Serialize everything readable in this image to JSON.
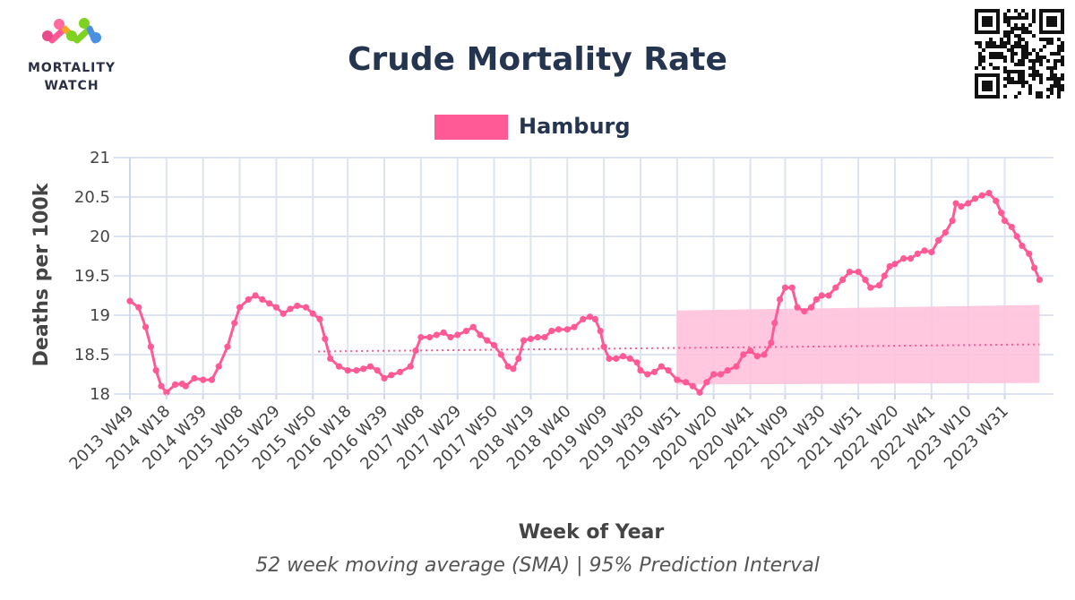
{
  "header": {
    "logo_line1": "MORTALITY",
    "logo_line2": "WATCH",
    "title": "Crude Mortality Rate",
    "subtitle": "52 week moving average (SMA) | 95% Prediction Interval"
  },
  "legend": {
    "label": "Hamburg",
    "color": "#ff5a96"
  },
  "colors": {
    "series": "#ff5a96",
    "band": "#ffc2dc",
    "baseline": "#ff5a96",
    "grid": "#dde3f3"
  },
  "chart_data": {
    "type": "line",
    "xlabel": "Week of Year",
    "ylabel": "Deaths per 100k",
    "ylim": [
      18,
      21
    ],
    "yticks": [
      18,
      18.5,
      19,
      19.5,
      20,
      20.5,
      21
    ],
    "ytick_labels": [
      "18",
      "18.5",
      "19",
      "19.5",
      "20",
      "20.5",
      "21"
    ],
    "x_start_week": "2013 W49",
    "x_end_week": "2024 W05",
    "xtick_labels": [
      "2013 W49",
      "2014 W18",
      "2014 W39",
      "2015 W08",
      "2015 W29",
      "2015 W50",
      "2016 W18",
      "2016 W39",
      "2017 W08",
      "2017 W29",
      "2017 W50",
      "2018 W19",
      "2018 W40",
      "2019 W09",
      "2019 W30",
      "2019 W51",
      "2020 W20",
      "2020 W41",
      "2021 W09",
      "2021 W30",
      "2021 W51",
      "2022 W20",
      "2022 W41",
      "2023 W10",
      "2023 W31"
    ],
    "series": [
      {
        "name": "Hamburg",
        "points": [
          [
            "2013 W49",
            19.18
          ],
          [
            "2014 W02",
            19.1
          ],
          [
            "2014 W06",
            18.85
          ],
          [
            "2014 W09",
            18.6
          ],
          [
            "2014 W12",
            18.3
          ],
          [
            "2014 W15",
            18.1
          ],
          [
            "2014 W18",
            18.02
          ],
          [
            "2014 W23",
            18.12
          ],
          [
            "2014 W27",
            18.13
          ],
          [
            "2014 W29",
            18.1
          ],
          [
            "2014 W34",
            18.2
          ],
          [
            "2014 W39",
            18.18
          ],
          [
            "2014 W44",
            18.18
          ],
          [
            "2014 W48",
            18.35
          ],
          [
            "2015 W01",
            18.6
          ],
          [
            "2015 W05",
            18.9
          ],
          [
            "2015 W08",
            19.1
          ],
          [
            "2015 W13",
            19.2
          ],
          [
            "2015 W17",
            19.25
          ],
          [
            "2015 W21",
            19.2
          ],
          [
            "2015 W25",
            19.15
          ],
          [
            "2015 W29",
            19.1
          ],
          [
            "2015 W33",
            19.02
          ],
          [
            "2015 W37",
            19.08
          ],
          [
            "2015 W41",
            19.12
          ],
          [
            "2015 W46",
            19.1
          ],
          [
            "2015 W50",
            19.02
          ],
          [
            "2016 W02",
            18.95
          ],
          [
            "2016 W05",
            18.7
          ],
          [
            "2016 W08",
            18.45
          ],
          [
            "2016 W13",
            18.35
          ],
          [
            "2016 W18",
            18.3
          ],
          [
            "2016 W23",
            18.3
          ],
          [
            "2016 W27",
            18.32
          ],
          [
            "2016 W31",
            18.35
          ],
          [
            "2016 W35",
            18.3
          ],
          [
            "2016 W39",
            18.2
          ],
          [
            "2016 W43",
            18.24
          ],
          [
            "2016 W48",
            18.28
          ],
          [
            "2017 W02",
            18.35
          ],
          [
            "2017 W05",
            18.55
          ],
          [
            "2017 W08",
            18.72
          ],
          [
            "2017 W13",
            18.72
          ],
          [
            "2017 W17",
            18.75
          ],
          [
            "2017 W21",
            18.78
          ],
          [
            "2017 W25",
            18.72
          ],
          [
            "2017 W29",
            18.75
          ],
          [
            "2017 W34",
            18.8
          ],
          [
            "2017 W38",
            18.85
          ],
          [
            "2017 W42",
            18.75
          ],
          [
            "2017 W46",
            18.68
          ],
          [
            "2017 W50",
            18.62
          ],
          [
            "2018 W02",
            18.5
          ],
          [
            "2018 W06",
            18.35
          ],
          [
            "2018 W09",
            18.32
          ],
          [
            "2018 W12",
            18.45
          ],
          [
            "2018 W15",
            18.68
          ],
          [
            "2018 W19",
            18.7
          ],
          [
            "2018 W23",
            18.72
          ],
          [
            "2018 W27",
            18.72
          ],
          [
            "2018 W31",
            18.8
          ],
          [
            "2018 W35",
            18.82
          ],
          [
            "2018 W40",
            18.82
          ],
          [
            "2018 W44",
            18.85
          ],
          [
            "2018 W49",
            18.95
          ],
          [
            "2019 W01",
            18.98
          ],
          [
            "2019 W04",
            18.95
          ],
          [
            "2019 W07",
            18.8
          ],
          [
            "2019 W09",
            18.6
          ],
          [
            "2019 W12",
            18.45
          ],
          [
            "2019 W16",
            18.45
          ],
          [
            "2019 W20",
            18.48
          ],
          [
            "2019 W24",
            18.45
          ],
          [
            "2019 W28",
            18.4
          ],
          [
            "2019 W30",
            18.3
          ],
          [
            "2019 W34",
            18.25
          ],
          [
            "2019 W38",
            18.28
          ],
          [
            "2019 W42",
            18.35
          ],
          [
            "2019 W46",
            18.3
          ],
          [
            "2019 W51",
            18.18
          ],
          [
            "2020 W04",
            18.15
          ],
          [
            "2020 W08",
            18.1
          ],
          [
            "2020 W12",
            18.02
          ],
          [
            "2020 W16",
            18.15
          ],
          [
            "2020 W20",
            18.25
          ],
          [
            "2020 W24",
            18.25
          ],
          [
            "2020 W28",
            18.3
          ],
          [
            "2020 W33",
            18.35
          ],
          [
            "2020 W37",
            18.5
          ],
          [
            "2020 W41",
            18.55
          ],
          [
            "2020 W45",
            18.48
          ],
          [
            "2020 W49",
            18.5
          ],
          [
            "2021 W01",
            18.65
          ],
          [
            "2021 W03",
            18.9
          ],
          [
            "2021 W06",
            19.2
          ],
          [
            "2021 W09",
            19.35
          ],
          [
            "2021 W13",
            19.35
          ],
          [
            "2021 W16",
            19.1
          ],
          [
            "2021 W20",
            19.05
          ],
          [
            "2021 W24",
            19.1
          ],
          [
            "2021 W27",
            19.2
          ],
          [
            "2021 W30",
            19.25
          ],
          [
            "2021 W34",
            19.25
          ],
          [
            "2021 W38",
            19.35
          ],
          [
            "2021 W42",
            19.45
          ],
          [
            "2021 W46",
            19.55
          ],
          [
            "2021 W51",
            19.55
          ],
          [
            "2022 W03",
            19.45
          ],
          [
            "2022 W06",
            19.35
          ],
          [
            "2022 W11",
            19.38
          ],
          [
            "2022 W14",
            19.5
          ],
          [
            "2022 W17",
            19.62
          ],
          [
            "2022 W20",
            19.65
          ],
          [
            "2022 W25",
            19.72
          ],
          [
            "2022 W29",
            19.72
          ],
          [
            "2022 W33",
            19.78
          ],
          [
            "2022 W37",
            19.82
          ],
          [
            "2022 W41",
            19.8
          ],
          [
            "2022 W45",
            19.95
          ],
          [
            "2022 W49",
            20.05
          ],
          [
            "2023 W01",
            20.2
          ],
          [
            "2023 W03",
            20.42
          ],
          [
            "2023 W06",
            20.38
          ],
          [
            "2023 W10",
            20.42
          ],
          [
            "2023 W14",
            20.48
          ],
          [
            "2023 W18",
            20.52
          ],
          [
            "2023 W22",
            20.55
          ],
          [
            "2023 W26",
            20.45
          ],
          [
            "2023 W29",
            20.3
          ],
          [
            "2023 W31",
            20.2
          ],
          [
            "2023 W35",
            20.12
          ],
          [
            "2023 W38",
            20.0
          ],
          [
            "2023 W41",
            19.88
          ],
          [
            "2023 W45",
            19.78
          ],
          [
            "2023 W48",
            19.6
          ],
          [
            "2023 W51",
            19.45
          ]
        ]
      }
    ],
    "baseline": {
      "start": "2016 W01",
      "end": "2023 W51",
      "y_start": 18.54,
      "y_end": 18.63
    },
    "prediction_interval": {
      "start": "2019 W51",
      "end": "2023 W51",
      "lower_start": 18.12,
      "lower_end": 18.14,
      "upper_start": 19.06,
      "upper_end": 19.13
    }
  }
}
